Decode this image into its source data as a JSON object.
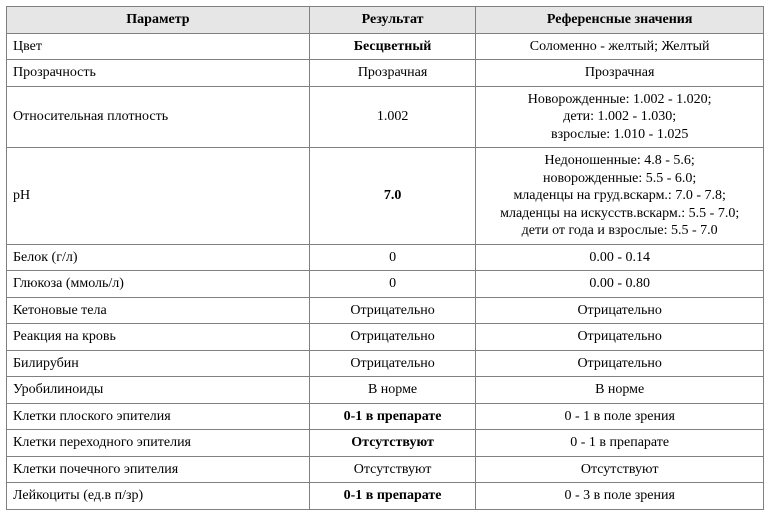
{
  "headers": {
    "param": "Параметр",
    "result": "Результат",
    "ref": "Референсные значения"
  },
  "rows": [
    {
      "param": "Цвет",
      "result": "Бесцветный",
      "result_bold": true,
      "ref": [
        "Соломенно - желтый; Желтый"
      ]
    },
    {
      "param": "Прозрачность",
      "result": "Прозрачная",
      "result_bold": false,
      "ref": [
        "Прозрачная"
      ]
    },
    {
      "param": "Относительная плотность",
      "result": "1.002",
      "result_bold": false,
      "ref": [
        "Новорожденные: 1.002 - 1.020;",
        "дети: 1.002 - 1.030;",
        "взрослые: 1.010 - 1.025"
      ]
    },
    {
      "param": "pH",
      "result": "7.0",
      "result_bold": true,
      "ref": [
        "Недоношенные: 4.8 - 5.6;",
        "новорожденные: 5.5 - 6.0;",
        "младенцы на груд.вскарм.: 7.0 - 7.8;",
        "младенцы на искусств.вскарм.: 5.5 - 7.0;",
        "дети от года и взрослые: 5.5 - 7.0"
      ]
    },
    {
      "param": "Белок (г/л)",
      "result": "0",
      "result_bold": false,
      "ref": [
        "0.00 - 0.14"
      ]
    },
    {
      "param": "Глюкоза (ммоль/л)",
      "result": "0",
      "result_bold": false,
      "ref": [
        "0.00 - 0.80"
      ]
    },
    {
      "param": "Кетоновые тела",
      "result": "Отрицательно",
      "result_bold": false,
      "ref": [
        "Отрицательно"
      ]
    },
    {
      "param": "Реакция на кровь",
      "result": "Отрицательно",
      "result_bold": false,
      "ref": [
        "Отрицательно"
      ]
    },
    {
      "param": "Билирубин",
      "result": "Отрицательно",
      "result_bold": false,
      "ref": [
        "Отрицательно"
      ]
    },
    {
      "param": "Уробилиноиды",
      "result": "В норме",
      "result_bold": false,
      "ref": [
        "В норме"
      ]
    },
    {
      "param": "Клетки плоского эпителия",
      "result": "0-1 в препарате",
      "result_bold": true,
      "ref": [
        "0 - 1 в поле зрения"
      ]
    },
    {
      "param": "Клетки переходного эпителия",
      "result": "Отсутствуют",
      "result_bold": true,
      "ref": [
        "0 - 1 в препарате"
      ]
    },
    {
      "param": "Клетки почечного эпителия",
      "result": "Отсутствуют",
      "result_bold": false,
      "ref": [
        "Отсутствуют"
      ]
    },
    {
      "param": "Лейкоциты (ед.в п/зр)",
      "result": "0-1 в препарате",
      "result_bold": true,
      "ref": [
        "0 - 3 в поле зрения"
      ]
    }
  ],
  "style": {
    "border_color": "#808080",
    "header_bg": "#e6e6e6",
    "font_family": "Times New Roman",
    "font_size_pt": 11,
    "col_widths_pct": [
      40,
      22,
      38
    ]
  }
}
